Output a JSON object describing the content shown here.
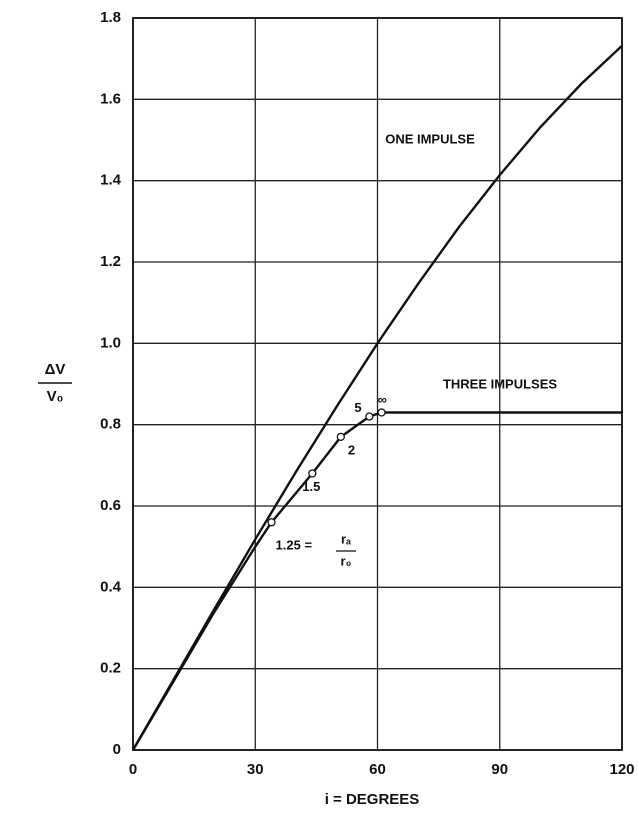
{
  "chart_data": {
    "type": "line",
    "xlabel": "i = DEGREES",
    "ylabel": {
      "numerator": "ΔV",
      "denominator": "V₀"
    },
    "xlim": [
      0,
      120
    ],
    "ylim": [
      0,
      1.8
    ],
    "xticks": [
      0,
      30,
      60,
      90,
      120
    ],
    "yticks": [
      0,
      0.2,
      0.4,
      0.6,
      0.8,
      {
        "value": 1,
        "label": "1.0"
      },
      1.2,
      1.4,
      1.6,
      1.8
    ],
    "grid": true,
    "color": "#111111",
    "series": [
      {
        "name": "ONE IMPULSE",
        "color": "#111111",
        "x": [
          0,
          10,
          20,
          30,
          40,
          50,
          60,
          70,
          80,
          90,
          100,
          110,
          120
        ],
        "values": [
          0,
          0.174,
          0.347,
          0.518,
          0.684,
          0.845,
          1.0,
          1.147,
          1.286,
          1.414,
          1.532,
          1.638,
          1.732
        ]
      },
      {
        "name": "THREE IMPULSES",
        "color": "#111111",
        "x": [
          0,
          10,
          20,
          30,
          34,
          44,
          51,
          58,
          61,
          90,
          120
        ],
        "values": [
          0,
          0.17,
          0.34,
          0.5,
          0.56,
          0.68,
          0.77,
          0.82,
          0.83,
          0.83,
          0.83
        ]
      }
    ],
    "markers": {
      "x": [
        34,
        44,
        51,
        58,
        61
      ],
      "values": [
        0.56,
        0.68,
        0.77,
        0.82,
        0.83
      ],
      "labels": [
        "1.25 =",
        "1.5",
        "2",
        "5",
        "∞"
      ]
    },
    "ratio_label": {
      "numerator": "rₐ",
      "denominator": "r₀"
    }
  }
}
